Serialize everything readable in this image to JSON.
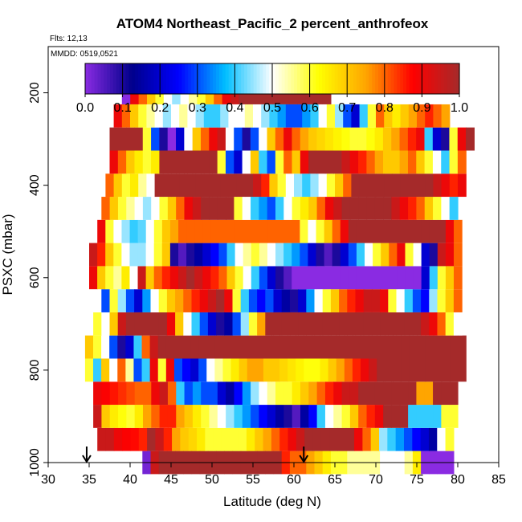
{
  "chart_data": {
    "type": "heatmap",
    "title": "ATOM4 Northeast_Pacific_2 percent_anthrofeox",
    "subtitle_flights": "Flts: 12,13",
    "subtitle_dates": "MMDD: 0519,0521",
    "xlabel": "Latitude (deg N)",
    "ylabel": "PSXC (mbar)",
    "xlim": [
      30,
      85
    ],
    "ylim": [
      1000,
      100
    ],
    "x_ticks": [
      30,
      35,
      40,
      45,
      50,
      55,
      60,
      65,
      70,
      75,
      80,
      85
    ],
    "y_ticks": [
      200,
      400,
      600,
      800,
      1000
    ],
    "colorbar": {
      "range": [
        0,
        1
      ],
      "ticks": [
        "0.0",
        "0.1",
        "0.2",
        "0.3",
        "0.4",
        "0.5",
        "0.6",
        "0.7",
        "0.8",
        "0.9",
        "1.0"
      ],
      "colors": [
        "#8a2be2",
        "#00008b",
        "#0000ff",
        "#00bfff",
        "#ffffff",
        "#ffff00",
        "#ffa500",
        "#ff0000",
        "#a52a2a"
      ]
    },
    "markers": [
      {
        "lat": 34.7,
        "direction": "down"
      },
      {
        "lat": 61.2,
        "direction": "down"
      }
    ],
    "layers": [
      {
        "p": 1000,
        "lat_start": 41.5,
        "lat_end": 79.5,
        "values": [
          0.02,
          0.95,
          1,
          1,
          1,
          1,
          1,
          1,
          1,
          1,
          1,
          1,
          1,
          1,
          1,
          1,
          1,
          0.85,
          0.8,
          0.8,
          0.75,
          0.7,
          0.65,
          0.6,
          0.6,
          0.55,
          0.55,
          0.55,
          0.55,
          0.5,
          0.5,
          0.5,
          0.55,
          0.65,
          0.0,
          0.0,
          0.0,
          0.0
        ]
      },
      {
        "p": 950,
        "lat_start": 36,
        "lat_end": 79.5,
        "values": [
          0.95,
          0.95,
          0.9,
          0.88,
          0.87,
          0.85,
          1,
          0.95,
          0.85,
          0.75,
          0.7,
          0.68,
          0.65,
          0.6,
          0.6,
          0.6,
          0.6,
          0.6,
          0.65,
          0.7,
          0.75,
          0.8,
          0.85,
          0.9,
          0.95,
          1,
          1,
          1,
          1,
          1,
          1,
          0.9,
          0.8,
          0.7,
          0.45,
          0.4,
          0.35,
          0.3,
          0.25,
          0.2,
          0.15,
          0.5,
          0.6
        ]
      },
      {
        "p": 900,
        "lat_start": 35.5,
        "lat_end": 80,
        "values": [
          0.95,
          0.7,
          0.65,
          0.62,
          0.6,
          0.65,
          0.75,
          0.8,
          0.85,
          0.85,
          0.75,
          0.7,
          0.65,
          0.6,
          0.55,
          0.5,
          0.45,
          0.4,
          0.35,
          0.3,
          0.25,
          0.2,
          0.15,
          0.1,
          0.05,
          0.15,
          0.25,
          0.4,
          0.5,
          0.55,
          0.6,
          0.7,
          0.8,
          0.85,
          0.9,
          1,
          1,
          1,
          0.4,
          0.4,
          0.4,
          0.4,
          0.6,
          0.6
        ]
      },
      {
        "p": 850,
        "lat_start": 35.5,
        "lat_end": 80,
        "values": [
          0.9,
          0.88,
          0.86,
          0.84,
          0.82,
          0.8,
          0.8,
          0.9,
          0.95,
          0.8,
          0.4,
          0.3,
          0.35,
          0.3,
          0.3,
          0.2,
          0.15,
          0.25,
          0.35,
          0.45,
          0.5,
          0.55,
          0.6,
          0.6,
          0.65,
          0.7,
          0.75,
          0.8,
          0.85,
          0.9,
          0.95,
          0.95,
          1,
          1,
          1,
          1,
          1,
          1,
          1,
          0.75,
          0.75,
          1,
          1,
          1
        ]
      },
      {
        "p": 800,
        "lat_start": 34.5,
        "lat_end": 81,
        "values": [
          0.6,
          0.4,
          0.7,
          0.5,
          0.8,
          0.55,
          0.3,
          0.4,
          0.9,
          0.6,
          0.9,
          0.3,
          0.25,
          0.2,
          0.3,
          0.5,
          0.55,
          0.6,
          0.65,
          0.7,
          0.75,
          0.75,
          0.7,
          0.7,
          0.68,
          0.66,
          0.64,
          0.62,
          0.62,
          0.65,
          0.7,
          0.75,
          0.8,
          0.85,
          0.9,
          0.95,
          1,
          1,
          1,
          1,
          1,
          1,
          1,
          1,
          1,
          1,
          1
        ]
      },
      {
        "p": 750,
        "lat_start": 34.5,
        "lat_end": 81,
        "values": [
          0.7,
          0.6,
          0.5,
          0.3,
          0.1,
          0.2,
          0.4,
          0.8,
          0.95,
          1,
          1,
          1,
          1,
          1,
          1,
          1,
          1,
          1,
          1,
          1,
          1,
          1,
          1,
          1,
          1,
          1,
          1,
          1,
          1,
          1,
          1,
          1,
          1,
          1,
          1,
          1,
          1,
          1,
          1,
          1,
          1,
          1,
          1,
          1,
          1,
          1,
          1
        ]
      },
      {
        "p": 700,
        "lat_start": 35.5,
        "lat_end": 80.5,
        "values": [
          0.6,
          0.5,
          0.7,
          0.95,
          1,
          1,
          1,
          1,
          1,
          0.9,
          0.7,
          0.5,
          0.4,
          0.3,
          0.2,
          0.1,
          0.15,
          0.3,
          0.45,
          0.6,
          0.75,
          1,
          1,
          1,
          1,
          1,
          1,
          1,
          1,
          1,
          1,
          1,
          1,
          1,
          1,
          1,
          1,
          1,
          1,
          1,
          0.95,
          0.9,
          0.8,
          0.6,
          0.5
        ]
      },
      {
        "p": 650,
        "lat_start": 35.5,
        "lat_end": 80.5,
        "values": [
          0.5,
          0.3,
          0.6,
          0.45,
          0.3,
          0.2,
          0.35,
          0.5,
          0.6,
          0.7,
          0.75,
          0.8,
          0.85,
          0.9,
          0.95,
          1,
          0.9,
          0.6,
          0.4,
          0.3,
          0.25,
          0.3,
          0.2,
          0.15,
          0.1,
          0.2,
          0.35,
          0.5,
          0.6,
          0.7,
          0.8,
          0.85,
          0.9,
          0.95,
          0.95,
          0.9,
          0.6,
          0.5,
          0.4,
          0.3,
          0.25,
          0.45,
          0.6,
          0.7,
          0.8
        ]
      },
      {
        "p": 600,
        "lat_start": 35,
        "lat_end": 80.5,
        "values": [
          0.9,
          0.7,
          0.6,
          0.55,
          0.65,
          0.5,
          0.95,
          0.7,
          0.8,
          0.85,
          0.9,
          0.95,
          1,
          0.95,
          0.9,
          0.85,
          0.8,
          0.7,
          0.6,
          0.5,
          0.4,
          0.3,
          0.2,
          0.1,
          0.05,
          0.0,
          0.0,
          0.0,
          0.0,
          0.0,
          0.0,
          0.0,
          0.0,
          0.0,
          0.0,
          0.0,
          0.0,
          0.0,
          0.0,
          0.0,
          0.0,
          0.2,
          0.4,
          0.6,
          0.7,
          0.8
        ]
      },
      {
        "p": 550,
        "lat_start": 35,
        "lat_end": 80.5,
        "values": [
          0.95,
          0.85,
          0.7,
          0.6,
          0.5,
          0.45,
          0.45,
          0.5,
          0.6,
          0.7,
          0.1,
          0.05,
          0.1,
          0.15,
          0.2,
          0.25,
          0.3,
          0.4,
          0.5,
          0.55,
          0.6,
          0.55,
          0.5,
          0.45,
          0.4,
          0.35,
          0.3,
          0.2,
          0.1,
          0.05,
          0.1,
          0.2,
          0.3,
          0.4,
          0.5,
          0.6,
          0.7,
          0.8,
          0.9,
          0.6,
          0.5,
          0.2,
          0.1,
          0.95,
          0.9,
          0.8
        ]
      },
      {
        "p": 500,
        "lat_start": 36,
        "lat_end": 80.5,
        "values": [
          0.9,
          0.6,
          0.5,
          0.45,
          0.4,
          0.42,
          0.5,
          0.6,
          0.7,
          0.75,
          0.8,
          0.8,
          0.8,
          0.8,
          0.8,
          0.8,
          0.8,
          0.8,
          0.8,
          0.8,
          0.8,
          0.8,
          0.8,
          0.8,
          0.8,
          0.6,
          0.5,
          0.6,
          0.7,
          0.8,
          0.9,
          1,
          1,
          1,
          1,
          1,
          1,
          1,
          1,
          1,
          1,
          1,
          1,
          0.9,
          0.8
        ]
      },
      {
        "p": 450,
        "lat_start": 36.5,
        "lat_end": 80,
        "values": [
          0.8,
          0.7,
          0.6,
          0.55,
          0.5,
          0.45,
          0.5,
          0.6,
          0.7,
          0.8,
          0.9,
          0.95,
          1,
          1,
          1,
          1,
          0.6,
          0.5,
          0.4,
          0.35,
          0.3,
          0.4,
          0.5,
          0.6,
          0.65,
          0.7,
          0.8,
          0.9,
          0.95,
          1,
          1,
          1,
          1,
          1,
          1,
          0.95,
          0.9,
          0.85,
          0.8,
          0.7,
          0.6,
          0.5,
          0.4
        ]
      },
      {
        "p": 400,
        "lat_start": 37,
        "lat_end": 81,
        "values": [
          0.8,
          0.7,
          0.6,
          0.65,
          0.55,
          0.5,
          1,
          1,
          1,
          1,
          1,
          1,
          1,
          1,
          1,
          1,
          1,
          1,
          0.95,
          0.85,
          0.7,
          0.6,
          0.5,
          0.45,
          0.4,
          0.45,
          0.5,
          0.6,
          0.7,
          0.8,
          1,
          1,
          1,
          1,
          1,
          1,
          1,
          1,
          1,
          1,
          0.95,
          0.9,
          0.85,
          0.9
        ]
      },
      {
        "p": 350,
        "lat_start": 37.5,
        "lat_end": 81,
        "values": [
          0.9,
          0.8,
          0.7,
          0.65,
          0.6,
          0.65,
          1,
          1,
          1,
          1,
          1,
          1,
          1,
          0.6,
          0.3,
          0.2,
          0.5,
          0.7,
          0.4,
          0.3,
          0.6,
          0.8,
          0.7,
          0.9,
          1,
          1,
          1,
          1,
          0.95,
          0.9,
          0.85,
          0.8,
          0.75,
          0.7,
          0.7,
          0.75,
          0.8,
          0.7,
          0.6,
          0.5,
          0.4,
          0.6,
          0.8
        ]
      },
      {
        "p": 300,
        "lat_start": 37.5,
        "lat_end": 82,
        "values": [
          1,
          1,
          1,
          1,
          0.6,
          0.3,
          0.1,
          0.0,
          0.2,
          0.5,
          0.7,
          0.8,
          0.9,
          0.95,
          0.5,
          0.3,
          0.1,
          0.3,
          0.5,
          0.7,
          0.8,
          0.9,
          0.8,
          0.75,
          0.7,
          0.68,
          0.66,
          0.64,
          0.62,
          0.6,
          0.6,
          0.62,
          0.65,
          0.7,
          0.75,
          0.8,
          0.85,
          0.9,
          0.4,
          0.2,
          0.1,
          0.6,
          0.9,
          1
        ]
      },
      {
        "p": 250,
        "lat_start": 38,
        "lat_end": 79,
        "values": [
          0.9,
          0.8,
          0.7,
          0.6,
          0.55,
          0.5,
          0.45,
          0.5,
          0.55,
          0.5,
          0.45,
          0.4,
          0.4,
          0.45,
          0.5,
          0.5,
          0.55,
          0.5,
          0.45,
          0.4,
          0.35,
          0.3,
          0.3,
          0.35,
          0.4,
          0.5,
          0.6,
          0.45,
          0.3,
          0.2,
          0.4,
          0.6,
          0.8,
          0.7,
          0.65,
          0.7,
          0.75,
          0.8,
          0.85,
          0.8,
          0.75
        ]
      },
      {
        "p": 200,
        "lat_start": 39,
        "lat_end": 64.5,
        "values": [
          0.0,
          0.9,
          0.8,
          0.7,
          0.6,
          0.5,
          0.45,
          0.5,
          0.55,
          0.6,
          0.7,
          0.8,
          0.9,
          0.95,
          1,
          1,
          1,
          1,
          1,
          1,
          1,
          1,
          1,
          1,
          1
        ]
      }
    ]
  }
}
